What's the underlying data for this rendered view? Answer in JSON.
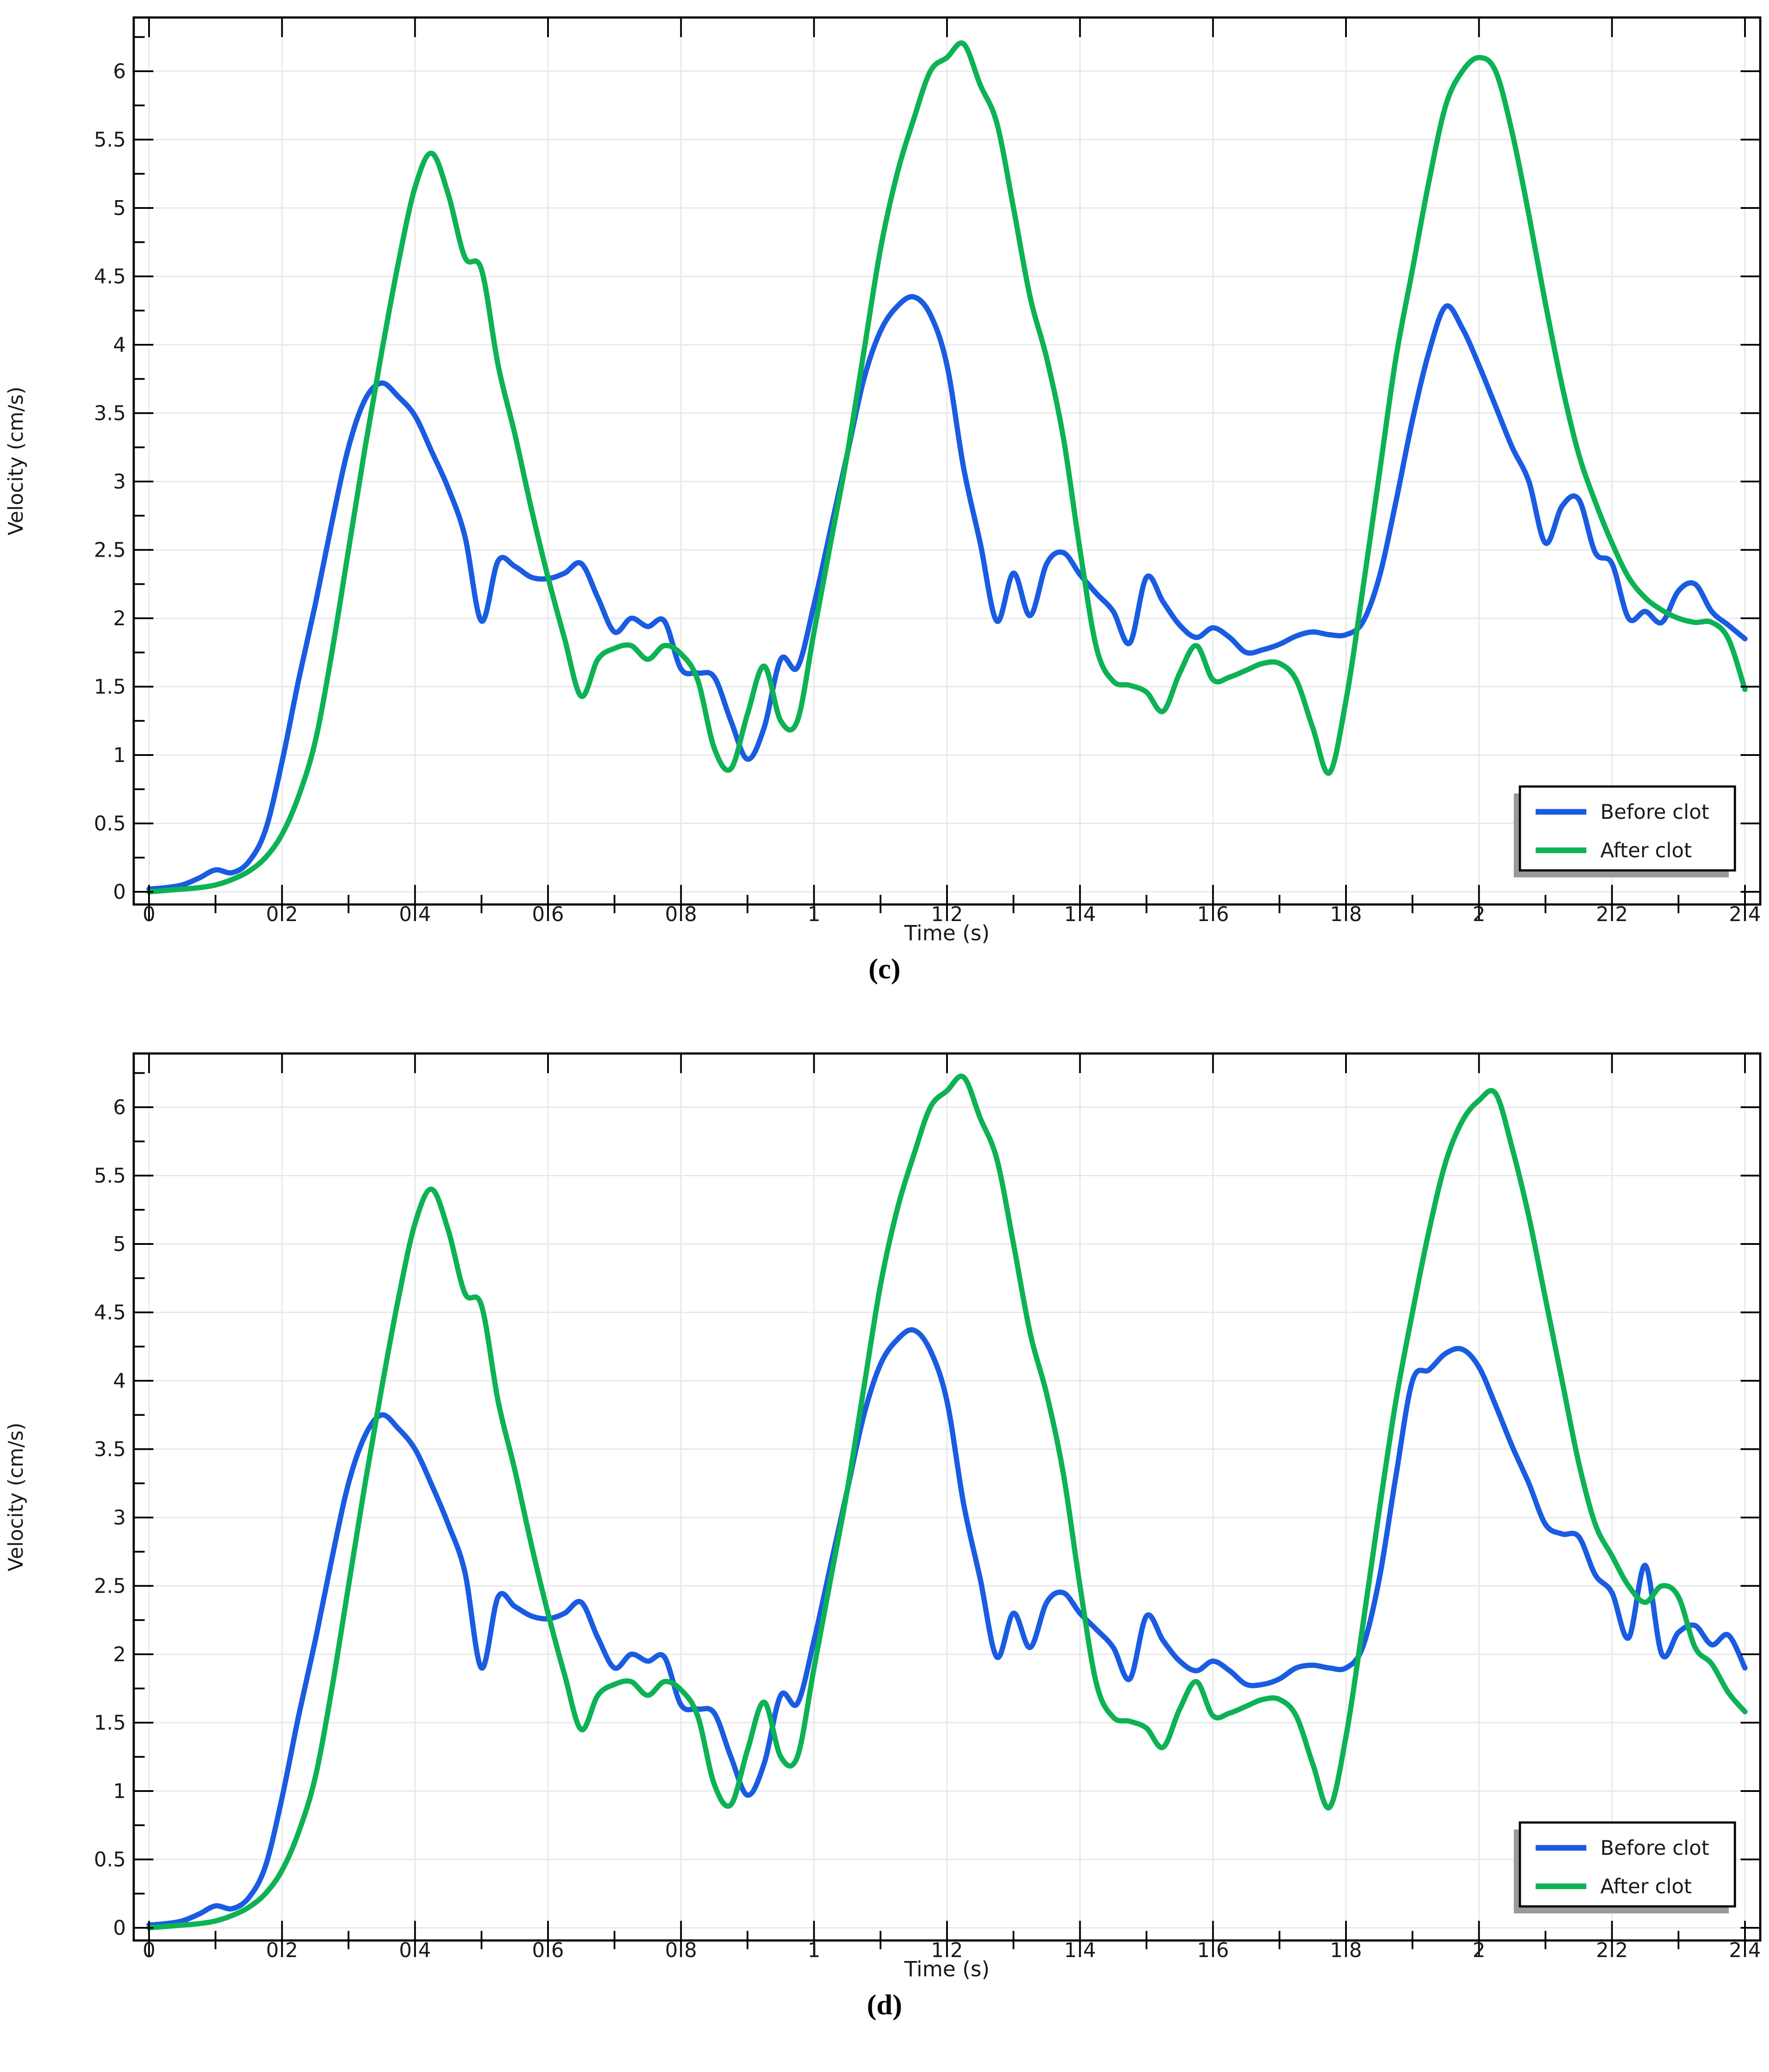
{
  "page": {
    "background": "#ffffff",
    "figure_count": 2
  },
  "colors": {
    "before_clot": "#1a5ce1",
    "after_clot": "#0db254",
    "grid": "#e8e8e8",
    "axis": "#000000",
    "tick_text": "#1a1a1a",
    "legend_border": "#000000",
    "legend_background": "#ffffff",
    "legend_shadow": "#999999"
  },
  "chart_data": [
    {
      "type": "line",
      "caption": "(c)",
      "xlabel": "Time (s)",
      "ylabel": "Velocity (cm/s)",
      "xlim": [
        0,
        2.4
      ],
      "ylim": [
        0,
        6
      ],
      "x_ticks": [
        0,
        0.2,
        0.4,
        0.6,
        0.8,
        1,
        1.2,
        1.4,
        1.6,
        1.8,
        2,
        2.2,
        2.4
      ],
      "y_ticks": [
        0,
        0.5,
        1,
        1.5,
        2,
        2.5,
        3,
        3.5,
        4,
        4.5,
        5,
        5.5,
        6
      ],
      "grid": true,
      "legend_position": "bottom-right",
      "legend": [
        "Before clot",
        "After clot"
      ],
      "x": [
        0,
        0.025,
        0.05,
        0.075,
        0.1,
        0.125,
        0.15,
        0.175,
        0.2,
        0.225,
        0.25,
        0.275,
        0.3,
        0.325,
        0.35,
        0.375,
        0.4,
        0.425,
        0.45,
        0.475,
        0.5,
        0.525,
        0.55,
        0.575,
        0.6,
        0.625,
        0.65,
        0.675,
        0.7,
        0.725,
        0.75,
        0.775,
        0.8,
        0.825,
        0.85,
        0.875,
        0.9,
        0.925,
        0.95,
        0.975,
        1,
        1.025,
        1.05,
        1.075,
        1.1,
        1.125,
        1.15,
        1.175,
        1.2,
        1.225,
        1.25,
        1.275,
        1.3,
        1.325,
        1.35,
        1.375,
        1.4,
        1.425,
        1.45,
        1.475,
        1.5,
        1.525,
        1.55,
        1.575,
        1.6,
        1.625,
        1.65,
        1.675,
        1.7,
        1.725,
        1.75,
        1.775,
        1.8,
        1.825,
        1.85,
        1.875,
        1.9,
        1.925,
        1.95,
        1.975,
        2,
        2.025,
        2.05,
        2.075,
        2.1,
        2.125,
        2.15,
        2.175,
        2.2,
        2.225,
        2.25,
        2.275,
        2.3,
        2.325,
        2.35,
        2.375,
        2.4
      ],
      "series": [
        {
          "name": "Before clot",
          "color": "#1a5ce1",
          "values": [
            0.02,
            0.03,
            0.05,
            0.1,
            0.16,
            0.14,
            0.22,
            0.45,
            0.95,
            1.55,
            2.1,
            2.7,
            3.25,
            3.6,
            3.72,
            3.62,
            3.48,
            3.22,
            2.95,
            2.6,
            1.98,
            2.42,
            2.38,
            2.3,
            2.29,
            2.33,
            2.4,
            2.15,
            1.9,
            2,
            1.94,
            1.98,
            1.63,
            1.6,
            1.57,
            1.25,
            0.97,
            1.2,
            1.7,
            1.64,
            2.1,
            2.65,
            3.2,
            3.75,
            4.1,
            4.28,
            4.35,
            4.22,
            3.85,
            3.1,
            2.55,
            1.98,
            2.33,
            2.02,
            2.4,
            2.48,
            2.32,
            2.18,
            2.05,
            1.82,
            2.3,
            2.12,
            1.95,
            1.86,
            1.93,
            1.86,
            1.75,
            1.77,
            1.81,
            1.87,
            1.9,
            1.88,
            1.88,
            1.97,
            2.3,
            2.85,
            3.45,
            3.95,
            4.28,
            4.12,
            3.85,
            3.55,
            3.25,
            3,
            2.55,
            2.82,
            2.87,
            2.48,
            2.4,
            2,
            2.05,
            1.97,
            2.2,
            2.25,
            2.05,
            1.95,
            1.85
          ]
        },
        {
          "name": "After clot",
          "color": "#0db254",
          "values": [
            0,
            0.01,
            0.02,
            0.03,
            0.05,
            0.09,
            0.15,
            0.25,
            0.42,
            0.7,
            1.1,
            1.75,
            2.5,
            3.25,
            3.95,
            4.6,
            5.15,
            5.4,
            5.1,
            4.64,
            4.55,
            3.85,
            3.35,
            2.8,
            2.3,
            1.85,
            1.43,
            1.7,
            1.78,
            1.8,
            1.7,
            1.8,
            1.74,
            1.55,
            1.05,
            0.9,
            1.3,
            1.65,
            1.25,
            1.25,
            1.9,
            2.55,
            3.2,
            3.95,
            4.7,
            5.25,
            5.65,
            6,
            6.1,
            6.2,
            5.9,
            5.62,
            5,
            4.35,
            3.9,
            3.32,
            2.5,
            1.78,
            1.54,
            1.51,
            1.46,
            1.32,
            1.6,
            1.8,
            1.55,
            1.57,
            1.62,
            1.67,
            1.67,
            1.55,
            1.2,
            0.87,
            1.4,
            2.2,
            3.05,
            3.9,
            4.55,
            5.2,
            5.75,
            6,
            6.1,
            6,
            5.55,
            4.95,
            4.3,
            3.7,
            3.2,
            2.85,
            2.55,
            2.3,
            2.15,
            2.06,
            2,
            1.97,
            1.97,
            1.85,
            1.48
          ]
        }
      ]
    },
    {
      "type": "line",
      "caption": "(d)",
      "xlabel": "Time (s)",
      "ylabel": "Velocity (cm/s)",
      "xlim": [
        0,
        2.4
      ],
      "ylim": [
        0,
        6
      ],
      "x_ticks": [
        0,
        0.2,
        0.4,
        0.6,
        0.8,
        1,
        1.2,
        1.4,
        1.6,
        1.8,
        2,
        2.2,
        2.4
      ],
      "y_ticks": [
        0,
        0.5,
        1,
        1.5,
        2,
        2.5,
        3,
        3.5,
        4,
        4.5,
        5,
        5.5,
        6
      ],
      "grid": true,
      "legend_position": "bottom-right",
      "legend": [
        "Before clot",
        "After clot"
      ],
      "x": [
        0,
        0.025,
        0.05,
        0.075,
        0.1,
        0.125,
        0.15,
        0.175,
        0.2,
        0.225,
        0.25,
        0.275,
        0.3,
        0.325,
        0.35,
        0.375,
        0.4,
        0.425,
        0.45,
        0.475,
        0.5,
        0.525,
        0.55,
        0.575,
        0.6,
        0.625,
        0.65,
        0.675,
        0.7,
        0.725,
        0.75,
        0.775,
        0.8,
        0.825,
        0.85,
        0.875,
        0.9,
        0.925,
        0.95,
        0.975,
        1,
        1.025,
        1.05,
        1.075,
        1.1,
        1.125,
        1.15,
        1.175,
        1.2,
        1.225,
        1.25,
        1.275,
        1.3,
        1.325,
        1.35,
        1.375,
        1.4,
        1.425,
        1.45,
        1.475,
        1.5,
        1.525,
        1.55,
        1.575,
        1.6,
        1.625,
        1.65,
        1.675,
        1.7,
        1.725,
        1.75,
        1.775,
        1.8,
        1.825,
        1.85,
        1.875,
        1.9,
        1.925,
        1.95,
        1.975,
        2,
        2.025,
        2.05,
        2.075,
        2.1,
        2.125,
        2.15,
        2.175,
        2.2,
        2.225,
        2.25,
        2.275,
        2.3,
        2.325,
        2.35,
        2.375,
        2.4
      ],
      "series": [
        {
          "name": "Before clot",
          "color": "#1a5ce1",
          "values": [
            0.02,
            0.03,
            0.05,
            0.1,
            0.16,
            0.14,
            0.22,
            0.45,
            0.95,
            1.55,
            2.1,
            2.7,
            3.25,
            3.6,
            3.75,
            3.65,
            3.5,
            3.24,
            2.95,
            2.6,
            1.9,
            2.42,
            2.35,
            2.28,
            2.26,
            2.3,
            2.38,
            2.12,
            1.9,
            2,
            1.95,
            1.98,
            1.63,
            1.6,
            1.57,
            1.25,
            0.97,
            1.2,
            1.7,
            1.64,
            2.1,
            2.65,
            3.2,
            3.75,
            4.12,
            4.3,
            4.37,
            4.22,
            3.85,
            3.1,
            2.55,
            1.98,
            2.3,
            2.05,
            2.38,
            2.45,
            2.3,
            2.18,
            2.05,
            1.82,
            2.28,
            2.1,
            1.95,
            1.88,
            1.95,
            1.88,
            1.78,
            1.78,
            1.82,
            1.9,
            1.92,
            1.9,
            1.9,
            2.05,
            2.55,
            3.3,
            4,
            4.08,
            4.2,
            4.23,
            4.1,
            3.82,
            3.52,
            3.25,
            2.95,
            2.88,
            2.86,
            2.58,
            2.45,
            2.12,
            2.65,
            2,
            2.16,
            2.21,
            2.07,
            2.14,
            1.9
          ]
        },
        {
          "name": "After clot",
          "color": "#0db254",
          "values": [
            0,
            0.01,
            0.02,
            0.03,
            0.05,
            0.09,
            0.15,
            0.25,
            0.42,
            0.7,
            1.1,
            1.75,
            2.5,
            3.25,
            3.95,
            4.6,
            5.15,
            5.4,
            5.1,
            4.64,
            4.55,
            3.85,
            3.35,
            2.8,
            2.3,
            1.85,
            1.45,
            1.7,
            1.78,
            1.8,
            1.7,
            1.8,
            1.74,
            1.55,
            1.05,
            0.9,
            1.3,
            1.65,
            1.25,
            1.25,
            1.9,
            2.55,
            3.2,
            3.95,
            4.7,
            5.25,
            5.65,
            6,
            6.12,
            6.22,
            5.92,
            5.62,
            5,
            4.35,
            3.9,
            3.32,
            2.5,
            1.78,
            1.54,
            1.51,
            1.46,
            1.32,
            1.6,
            1.8,
            1.55,
            1.57,
            1.62,
            1.67,
            1.67,
            1.55,
            1.2,
            0.88,
            1.4,
            2.2,
            3.05,
            3.85,
            4.5,
            5.1,
            5.6,
            5.9,
            6.05,
            6.1,
            5.7,
            5.2,
            4.6,
            4,
            3.4,
            2.95,
            2.72,
            2.5,
            2.38,
            2.5,
            2.42,
            2.05,
            1.93,
            1.72,
            1.58
          ]
        }
      ]
    }
  ]
}
